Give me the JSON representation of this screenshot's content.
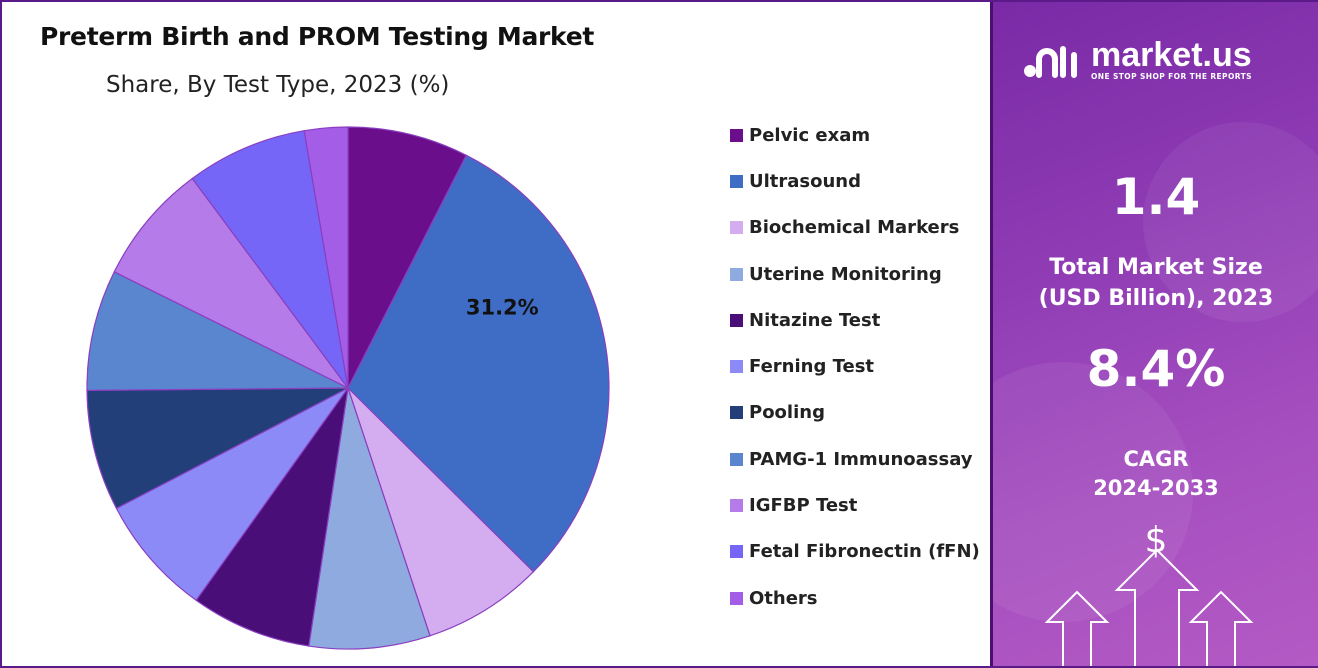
{
  "title": "Preterm Birth and PROM Testing Market",
  "subtitle": "Share, By Test Type, 2023 (%)",
  "brand": {
    "name": "market.us",
    "tagline": "ONE STOP SHOP FOR THE REPORTS"
  },
  "panel": {
    "market_size_value": "1.4",
    "market_size_label_line1": "Total Market Size",
    "market_size_label_line2": "(USD Billion), 2023",
    "cagr_value": "8.4%",
    "cagr_label_line1": "CAGR",
    "cagr_label_line2": "2024-2033",
    "currency_symbol": "$",
    "colors": {
      "panel_bg": "#8e3bb4",
      "accent": "#5a1a8a"
    }
  },
  "chart_data": {
    "type": "pie",
    "title": "Preterm Birth and PROM Testing Market",
    "subtitle": "Share, By Test Type, 2023 (%)",
    "start_angle_deg": 0,
    "direction": "clockwise",
    "legend_position": "right",
    "data_labels": [
      {
        "category": "Ultrasound",
        "text": "31.2%"
      }
    ],
    "slices": [
      {
        "label": "Pelvic exam",
        "value": 7.8,
        "color": "#6a0e8c"
      },
      {
        "label": "Ultrasound",
        "value": 31.2,
        "color": "#3f6cc4"
      },
      {
        "label": "Biochemical Markers",
        "value": 7.8,
        "color": "#d4adf0"
      },
      {
        "label": "Uterine Monitoring",
        "value": 7.8,
        "color": "#8eaadf"
      },
      {
        "label": "Nitazine Test",
        "value": 7.8,
        "color": "#4a0e78"
      },
      {
        "label": "Ferning Test",
        "value": 7.8,
        "color": "#8b8af7"
      },
      {
        "label": "Pooling",
        "value": 7.8,
        "color": "#233f7a"
      },
      {
        "label": "PAMG-1 Immunoassay",
        "value": 7.8,
        "color": "#5a86cf"
      },
      {
        "label": "IGFBP Test",
        "value": 7.8,
        "color": "#b57be8"
      },
      {
        "label": "Fetal Fibronectin (fFN)",
        "value": 7.8,
        "color": "#7566f8"
      },
      {
        "label": "Others",
        "value": 2.8,
        "color": "#a35de6"
      }
    ]
  }
}
